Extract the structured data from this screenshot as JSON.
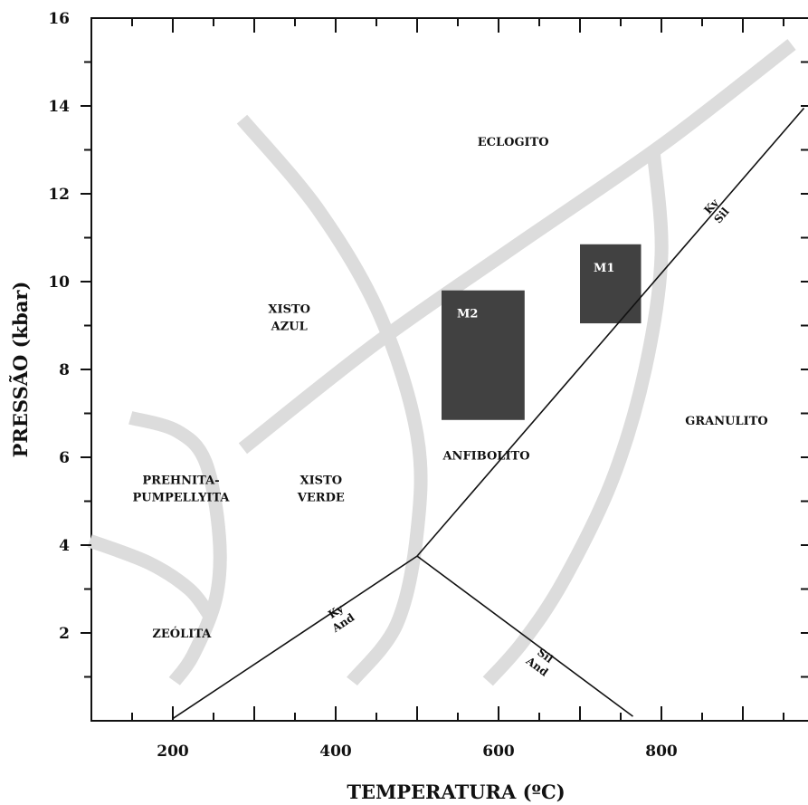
{
  "chart_data": {
    "type": "line",
    "title": "",
    "xlabel": "TEMPERATURA (ºC)",
    "ylabel": "PRESSÃO (kbar)",
    "xlim": [
      100,
      980
    ],
    "ylim": [
      0,
      16
    ],
    "x_ticks": [
      "200",
      "400",
      "600",
      "800"
    ],
    "y_ticks": [
      "2",
      "4",
      "6",
      "8",
      "10",
      "12",
      "14",
      "16"
    ],
    "facies_boundaries": [
      {
        "points": [
          [
            286,
            6.2
          ],
          [
            450,
            8.6
          ],
          [
            620,
            10.8
          ],
          [
            800,
            13.1
          ],
          [
            960,
            15.4
          ]
        ]
      },
      {
        "points": [
          [
            285,
            13.7
          ],
          [
            380,
            11.6
          ],
          [
            455,
            9.2
          ],
          [
            500,
            6.5
          ],
          [
            500,
            4.3
          ],
          [
            475,
            2.2
          ],
          [
            420,
            0.9
          ]
        ]
      },
      {
        "points": [
          [
            790,
            13.0
          ],
          [
            800,
            10.6
          ],
          [
            780,
            8.0
          ],
          [
            740,
            5.5
          ],
          [
            680,
            3.2
          ],
          [
            630,
            1.8
          ],
          [
            587,
            0.9
          ]
        ]
      },
      {
        "points": [
          [
            148,
            6.9
          ],
          [
            205,
            6.6
          ],
          [
            240,
            5.9
          ],
          [
            257,
            4.2
          ],
          [
            253,
            2.8
          ],
          [
            225,
            1.5
          ],
          [
            202,
            0.9
          ]
        ]
      },
      {
        "points": [
          [
            98,
            4.1
          ],
          [
            170,
            3.6
          ],
          [
            220,
            3.0
          ],
          [
            245,
            2.4
          ]
        ]
      }
    ],
    "aluminosilicate_reactions": [
      {
        "name": "Ky-And",
        "points": [
          [
            200,
            0.05
          ],
          [
            500,
            3.75
          ]
        ]
      },
      {
        "name": "And-Sil",
        "points": [
          [
            500,
            3.75
          ],
          [
            765,
            0.1
          ]
        ]
      },
      {
        "name": "Ky-Sil",
        "points": [
          [
            500,
            3.75
          ],
          [
            975,
            13.95
          ]
        ]
      }
    ],
    "reaction_labels": [
      {
        "top": "Ky",
        "bottom": "And",
        "x": 405,
        "y": 2.35
      },
      {
        "top": "Sil",
        "bottom": "And",
        "x": 652,
        "y": 1.35
      },
      {
        "top": "Ky",
        "bottom": "Sil",
        "x": 868,
        "y": 11.6
      }
    ],
    "facies_labels": [
      {
        "lines": [
          "ECLOGITO"
        ],
        "x": 618,
        "y": 13.2
      },
      {
        "lines": [
          "XISTO",
          "AZUL"
        ],
        "x": 343,
        "y": 9.2
      },
      {
        "lines": [
          "PREHNITA-",
          "PUMPELLYITA"
        ],
        "x": 210,
        "y": 5.3
      },
      {
        "lines": [
          "XISTO",
          "VERDE"
        ],
        "x": 382,
        "y": 5.3
      },
      {
        "lines": [
          "ANFIBOLITO"
        ],
        "x": 585,
        "y": 6.05
      },
      {
        "lines": [
          "GRANULITO"
        ],
        "x": 880,
        "y": 6.85
      },
      {
        "lines": [
          "ZEÓLITA"
        ],
        "x": 211,
        "y": 2.0
      }
    ],
    "metamorphic_fields": [
      {
        "name": "M1",
        "t_range": [
          700,
          775
        ],
        "p_range": [
          9.05,
          10.85
        ]
      },
      {
        "name": "M2",
        "t_range": [
          530,
          632
        ],
        "p_range": [
          6.85,
          9.8
        ]
      }
    ],
    "colors": {
      "facies_boundary": "#dcdcdc",
      "field_fill": "#414141",
      "line": "#111111"
    }
  }
}
